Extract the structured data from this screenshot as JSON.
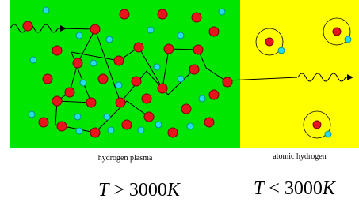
{
  "regions": [
    {
      "label": "hydrogen plasma",
      "condition": {
        "variable": "T",
        "relation": ">",
        "number": "3000",
        "unit": "K"
      }
    },
    {
      "label": "atomic hydrogen",
      "condition": {
        "variable": "T",
        "relation": "<",
        "number": "3000",
        "unit": "K"
      }
    }
  ]
}
